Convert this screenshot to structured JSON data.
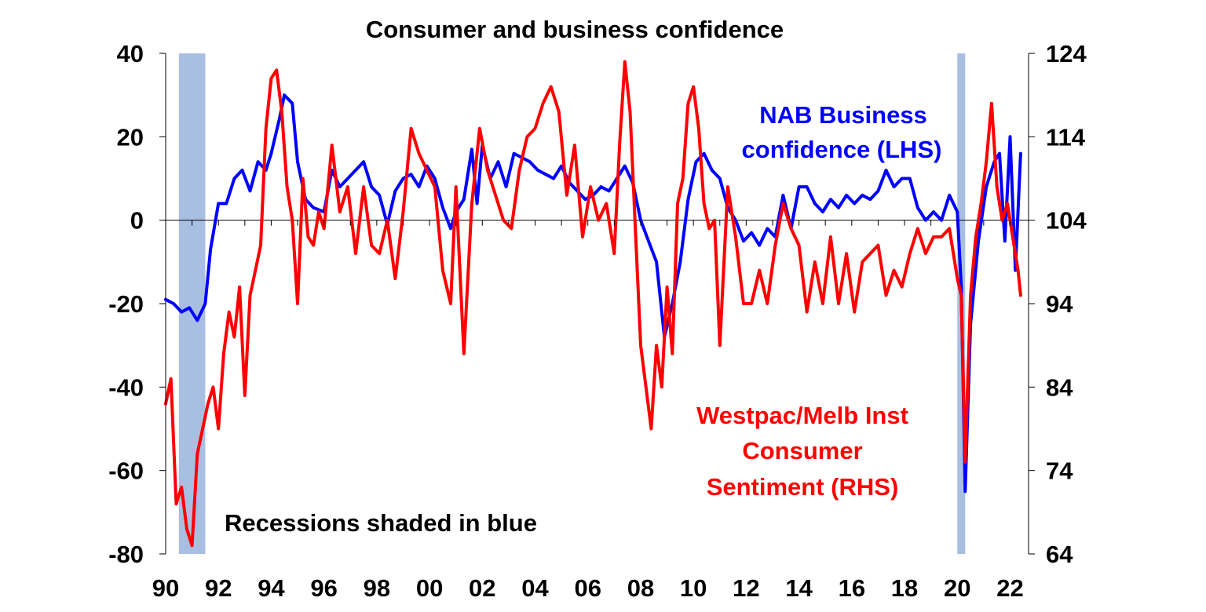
{
  "chart_data": {
    "type": "line",
    "title": "Consumer and business confidence",
    "xlabel": "",
    "ylabel_left": "",
    "ylabel_right": "",
    "x_range": [
      1990.0,
      2022.7
    ],
    "x_tick_labels": [
      "90",
      "92",
      "94",
      "96",
      "98",
      "00",
      "02",
      "04",
      "06",
      "08",
      "10",
      "12",
      "14",
      "16",
      "18",
      "20",
      "22"
    ],
    "y_left_range": [
      -80,
      40
    ],
    "y_left_ticks": [
      "40",
      "20",
      "0",
      "-20",
      "-40",
      "-60",
      "-80"
    ],
    "y_right_range": [
      64,
      124
    ],
    "y_right_ticks": [
      "124",
      "114",
      "104",
      "94",
      "84",
      "74",
      "64"
    ],
    "recessions": [
      [
        1990.5,
        1991.5
      ],
      [
        2020.0,
        2020.3
      ]
    ],
    "annotations": {
      "nab_label_line1": "NAB Business",
      "nab_label_line2": "confidence (LHS)",
      "westpac_label_line1": "Westpac/Melb Inst",
      "westpac_label_line2": "Consumer",
      "westpac_label_line3": "Sentiment (RHS)",
      "recession_note": "Recessions shaded in blue"
    },
    "colors": {
      "nab": "#0000ff",
      "westpac": "#ff0000",
      "recession": "#a9bfe2"
    },
    "series": [
      {
        "name": "NAB Business confidence (LHS)",
        "axis": "left",
        "x": [
          1990.0,
          1990.3,
          1990.6,
          1990.9,
          1991.2,
          1991.5,
          1991.7,
          1992.0,
          1992.3,
          1992.6,
          1992.9,
          1993.2,
          1993.5,
          1993.8,
          1994.0,
          1994.3,
          1994.5,
          1994.8,
          1995.0,
          1995.3,
          1995.6,
          1996.0,
          1996.3,
          1996.6,
          1996.9,
          1997.2,
          1997.5,
          1997.8,
          1998.1,
          1998.4,
          1998.7,
          1999.0,
          1999.3,
          1999.6,
          1999.9,
          2000.2,
          2000.5,
          2000.8,
          2001.0,
          2001.3,
          2001.6,
          2001.8,
          2002.0,
          2002.3,
          2002.6,
          2002.9,
          2003.2,
          2003.5,
          2003.8,
          2004.1,
          2004.4,
          2004.7,
          2005.0,
          2005.3,
          2005.6,
          2005.9,
          2006.2,
          2006.5,
          2006.8,
          2007.1,
          2007.4,
          2007.7,
          2008.0,
          2008.3,
          2008.6,
          2008.9,
          2009.2,
          2009.5,
          2009.8,
          2010.1,
          2010.4,
          2010.7,
          2011.0,
          2011.3,
          2011.6,
          2011.9,
          2012.2,
          2012.5,
          2012.8,
          2013.1,
          2013.4,
          2013.7,
          2014.0,
          2014.3,
          2014.6,
          2014.9,
          2015.2,
          2015.5,
          2015.8,
          2016.1,
          2016.4,
          2016.7,
          2017.0,
          2017.3,
          2017.6,
          2017.9,
          2018.2,
          2018.5,
          2018.8,
          2019.1,
          2019.4,
          2019.7,
          2020.0,
          2020.15,
          2020.3,
          2020.5,
          2020.8,
          2021.1,
          2021.4,
          2021.6,
          2021.8,
          2022.0,
          2022.2,
          2022.4
        ],
        "values": [
          -19,
          -20,
          -22,
          -21,
          -24,
          -20,
          -7,
          4,
          4,
          10,
          12,
          7,
          14,
          12,
          16,
          24,
          30,
          28,
          14,
          5,
          3,
          2,
          12,
          8,
          10,
          12,
          14,
          8,
          6,
          -1,
          7,
          10,
          11,
          8,
          13,
          10,
          3,
          -2,
          2,
          5,
          17,
          4,
          18,
          10,
          14,
          8,
          16,
          15,
          14,
          12,
          11,
          10,
          13,
          9,
          7,
          5,
          6,
          8,
          7,
          10,
          13,
          9,
          0,
          -5,
          -10,
          -28,
          -20,
          -10,
          5,
          14,
          16,
          12,
          10,
          3,
          0,
          -5,
          -3,
          -6,
          -2,
          -4,
          6,
          -2,
          8,
          8,
          4,
          2,
          5,
          3,
          6,
          4,
          6,
          5,
          7,
          12,
          8,
          10,
          10,
          3,
          0,
          2,
          0,
          6,
          2,
          -16,
          -65,
          -25,
          -5,
          8,
          14,
          16,
          -5,
          20,
          -12,
          16
        ]
      },
      {
        "name": "Westpac/Melb Inst Consumer Sentiment (RHS)",
        "axis": "right",
        "x": [
          1990.0,
          1990.2,
          1990.4,
          1990.6,
          1990.8,
          1991.0,
          1991.2,
          1991.4,
          1991.6,
          1991.8,
          1992.0,
          1992.2,
          1992.4,
          1992.6,
          1992.8,
          1993.0,
          1993.2,
          1993.4,
          1993.6,
          1993.8,
          1994.0,
          1994.2,
          1994.4,
          1994.6,
          1994.8,
          1995.0,
          1995.2,
          1995.4,
          1995.6,
          1995.8,
          1996.0,
          1996.3,
          1996.6,
          1996.9,
          1997.2,
          1997.5,
          1997.8,
          1998.1,
          1998.4,
          1998.7,
          1999.0,
          1999.3,
          1999.6,
          1999.9,
          2000.2,
          2000.5,
          2000.8,
          2001.0,
          2001.3,
          2001.6,
          2001.9,
          2002.2,
          2002.5,
          2002.8,
          2003.1,
          2003.4,
          2003.7,
          2004.0,
          2004.3,
          2004.6,
          2004.9,
          2005.2,
          2005.5,
          2005.8,
          2006.1,
          2006.4,
          2006.7,
          2007.0,
          2007.2,
          2007.4,
          2007.6,
          2007.8,
          2008.0,
          2008.2,
          2008.4,
          2008.6,
          2008.8,
          2009.0,
          2009.2,
          2009.4,
          2009.6,
          2009.8,
          2010.0,
          2010.2,
          2010.4,
          2010.6,
          2010.8,
          2011.0,
          2011.3,
          2011.6,
          2011.9,
          2012.2,
          2012.5,
          2012.8,
          2013.1,
          2013.4,
          2013.7,
          2014.0,
          2014.3,
          2014.6,
          2014.9,
          2015.2,
          2015.5,
          2015.8,
          2016.1,
          2016.4,
          2016.7,
          2017.0,
          2017.3,
          2017.6,
          2017.9,
          2018.2,
          2018.5,
          2018.8,
          2019.1,
          2019.4,
          2019.7,
          2020.0,
          2020.15,
          2020.3,
          2020.5,
          2020.7,
          2020.9,
          2021.1,
          2021.3,
          2021.5,
          2021.7,
          2021.9,
          2022.1,
          2022.3,
          2022.4
        ],
        "values": [
          82,
          85,
          70,
          72,
          67,
          65,
          76,
          79,
          82,
          84,
          79,
          88,
          93,
          90,
          96,
          83,
          95,
          98,
          101,
          115,
          121,
          122,
          117,
          108,
          104,
          94,
          109,
          102,
          101,
          105,
          103,
          113,
          105,
          108,
          100,
          108,
          101,
          100,
          104,
          97,
          105,
          115,
          112,
          110,
          108,
          98,
          94,
          108,
          88,
          106,
          115,
          110,
          107,
          104,
          103,
          110,
          114,
          115,
          118,
          120,
          117,
          107,
          113,
          102,
          108,
          104,
          106,
          100,
          113,
          123,
          117,
          103,
          89,
          84,
          79,
          89,
          84,
          96,
          88,
          106,
          109,
          118,
          120,
          115,
          106,
          103,
          104,
          89,
          108,
          102,
          94,
          94,
          98,
          94,
          101,
          106,
          103,
          101,
          93,
          99,
          94,
          102,
          94,
          100,
          93,
          99,
          100,
          101,
          95,
          98,
          96,
          100,
          103,
          100,
          102,
          102,
          103,
          97,
          95,
          75,
          95,
          102,
          106,
          111,
          118,
          108,
          104,
          106,
          102,
          98,
          95
        ]
      }
    ]
  }
}
